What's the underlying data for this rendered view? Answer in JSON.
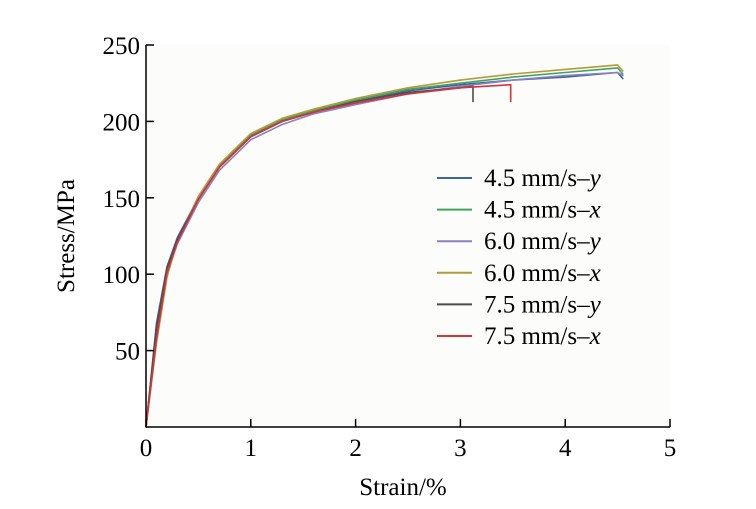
{
  "chart_data": {
    "type": "line",
    "title": "",
    "xlabel": "Strain/%",
    "ylabel": "Stress/MPa",
    "xlim": [
      0,
      5
    ],
    "ylim": [
      0,
      250
    ],
    "xticks": [
      0,
      1,
      2,
      3,
      4,
      5
    ],
    "yticks": [
      50,
      100,
      150,
      200,
      250
    ],
    "grid": false,
    "legend_position": "right",
    "series": [
      {
        "name": "4.5 mm/s–y",
        "legend_base": "4.5 mm/s–",
        "legend_suffix": "y",
        "color": "#3a63a8",
        "x": [
          0,
          0.1,
          0.2,
          0.3,
          0.5,
          0.7,
          1.0,
          1.3,
          1.6,
          2.0,
          2.5,
          3.0,
          3.5,
          4.0,
          4.5,
          4.55
        ],
        "y": [
          0,
          68,
          105,
          124,
          150,
          170,
          190,
          200,
          207,
          213,
          220,
          224,
          227,
          229,
          232,
          228
        ]
      },
      {
        "name": "4.5 mm/s–x",
        "legend_base": "4.5 mm/s–",
        "legend_suffix": "x",
        "color": "#3fa55a",
        "x": [
          0,
          0.1,
          0.2,
          0.3,
          0.5,
          0.7,
          1.0,
          1.3,
          1.6,
          2.0,
          2.5,
          3.0,
          3.5,
          4.0,
          4.5,
          4.55
        ],
        "y": [
          0,
          62,
          103,
          122,
          150,
          171,
          191,
          201,
          207,
          214,
          221,
          225,
          229,
          232,
          235,
          231
        ]
      },
      {
        "name": "6.0 mm/s–y",
        "legend_base": "6.0 mm/s–",
        "legend_suffix": "y",
        "color": "#8e7fc0",
        "x": [
          0,
          0.1,
          0.2,
          0.3,
          0.5,
          0.7,
          1.0,
          1.3,
          1.6,
          2.0,
          2.5,
          3.0,
          3.5,
          4.0,
          4.5,
          4.55
        ],
        "y": [
          0,
          60,
          100,
          120,
          147,
          168,
          188,
          198,
          205,
          211,
          218,
          223,
          227,
          230,
          232,
          230
        ]
      },
      {
        "name": "6.0 mm/s–x",
        "legend_base": "6.0 mm/s–",
        "legend_suffix": "x",
        "color": "#b59a3c",
        "x": [
          0,
          0.1,
          0.2,
          0.3,
          0.5,
          0.7,
          1.0,
          1.3,
          1.6,
          2.0,
          2.5,
          3.0,
          3.5,
          4.0,
          4.5,
          4.55
        ],
        "y": [
          0,
          55,
          98,
          122,
          151,
          172,
          192,
          202,
          208,
          215,
          222,
          227,
          231,
          234,
          237,
          233
        ]
      },
      {
        "name": "7.5 mm/s–y",
        "legend_base": "7.5 mm/s–",
        "legend_suffix": "y",
        "color": "#4d4d4d",
        "x": [
          0,
          0.1,
          0.2,
          0.3,
          0.5,
          0.7,
          1.0,
          1.3,
          1.6,
          2.0,
          2.5,
          3.0,
          3.12,
          3.12
        ],
        "y": [
          0,
          65,
          104,
          123,
          149,
          170,
          190,
          200,
          206,
          213,
          219,
          222,
          223,
          213
        ]
      },
      {
        "name": "7.5 mm/s–x",
        "legend_base": "7.5 mm/s–",
        "legend_suffix": "x",
        "color": "#d2343a",
        "x": [
          0,
          0.1,
          0.2,
          0.3,
          0.5,
          0.7,
          1.0,
          1.3,
          1.6,
          2.0,
          2.5,
          3.0,
          3.48,
          3.48
        ],
        "y": [
          0,
          58,
          101,
          121,
          149,
          170,
          190,
          200,
          206,
          212,
          218,
          222,
          224,
          213
        ]
      }
    ]
  }
}
